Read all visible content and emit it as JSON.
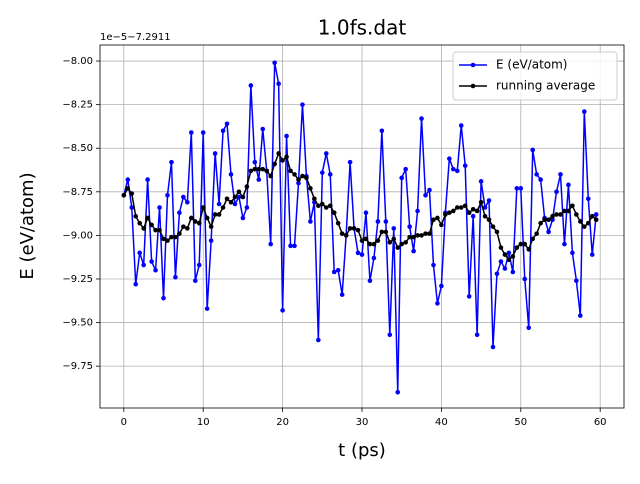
{
  "chart_data": {
    "type": "line",
    "title": "1.0fs.dat",
    "x_label": "t (ps)",
    "y_label": "E (eV/atom)",
    "y_offset_label": "1e−5−7.2911",
    "x": [
      0,
      0.5,
      1,
      1.5,
      2,
      2.5,
      3,
      3.5,
      4,
      4.5,
      5,
      5.5,
      6,
      6.5,
      7,
      7.5,
      8,
      8.5,
      9,
      9.5,
      10,
      10.5,
      11,
      11.5,
      12,
      12.5,
      13,
      13.5,
      14,
      14.5,
      15,
      15.5,
      16,
      16.5,
      17,
      17.5,
      18,
      18.5,
      19,
      19.5,
      20,
      20.5,
      21,
      21.5,
      22,
      22.5,
      23,
      23.5,
      24,
      24.5,
      25,
      25.5,
      26,
      26.5,
      27,
      27.5,
      28,
      28.5,
      29,
      29.5,
      30,
      30.5,
      31,
      31.5,
      32,
      32.5,
      33,
      33.5,
      34,
      34.5,
      35,
      35.5,
      36,
      36.5,
      37,
      37.5,
      38,
      38.5,
      39,
      39.5,
      40,
      40.5,
      41,
      41.5,
      42,
      42.5,
      43,
      43.5,
      44,
      44.5,
      45,
      45.5,
      46,
      46.5,
      47,
      47.5,
      48,
      48.5,
      49,
      49.5,
      50,
      50.5,
      51,
      51.5,
      52,
      52.5,
      53,
      53.5,
      54,
      54.5,
      55,
      55.5,
      56,
      56.5,
      57,
      57.5,
      58,
      58.5,
      59,
      59.5
    ],
    "series": [
      {
        "name": "E (eV/atom)",
        "color": "#0000ff",
        "values": [
          -8.77,
          -8.68,
          -8.84,
          -9.28,
          -9.1,
          -9.17,
          -8.68,
          -9.15,
          -9.2,
          -8.84,
          -9.36,
          -8.77,
          -8.58,
          -9.24,
          -8.87,
          -8.78,
          -8.81,
          -8.41,
          -9.26,
          -9.17,
          -8.41,
          -9.42,
          -9.03,
          -8.53,
          -8.82,
          -8.4,
          -8.36,
          -8.65,
          -8.82,
          -8.78,
          -8.9,
          -8.84,
          -8.14,
          -8.58,
          -8.68,
          -8.39,
          -8.63,
          -9.05,
          -8.01,
          -8.13,
          -9.43,
          -8.43,
          -9.06,
          -9.06,
          -8.7,
          -8.25,
          -8.66,
          -8.92,
          -8.81,
          -9.6,
          -8.64,
          -8.53,
          -8.65,
          -9.21,
          -9.2,
          -9.34,
          -9.0,
          -8.58,
          -8.96,
          -9.1,
          -9.11,
          -8.87,
          -9.26,
          -9.13,
          -8.92,
          -8.4,
          -8.92,
          -9.57,
          -8.96,
          -9.9,
          -8.67,
          -8.62,
          -8.95,
          -9.09,
          -8.86,
          -8.33,
          -8.77,
          -8.74,
          -9.17,
          -9.39,
          -9.29,
          -8.87,
          -8.56,
          -8.62,
          -8.63,
          -8.37,
          -8.6,
          -9.35,
          -8.89,
          -9.57,
          -8.69,
          -8.84,
          -8.8,
          -9.64,
          -9.22,
          -9.15,
          -9.19,
          -9.1,
          -9.21,
          -8.73,
          -8.73,
          -9.25,
          -9.53,
          -8.51,
          -8.65,
          -8.68,
          -8.9,
          -8.98,
          -8.91,
          -8.75,
          -8.65,
          -9.05,
          -8.71,
          -9.1,
          -9.26,
          -9.46,
          -8.29,
          -8.79,
          -9.11,
          -8.88
        ]
      },
      {
        "name": "running average",
        "color": "#000000",
        "values": [
          -8.77,
          -8.73,
          -8.76,
          -8.89,
          -8.93,
          -8.96,
          -8.9,
          -8.94,
          -8.97,
          -8.97,
          -9.02,
          -9.03,
          -9.01,
          -9.01,
          -8.99,
          -8.95,
          -8.96,
          -8.9,
          -8.92,
          -8.93,
          -8.84,
          -8.9,
          -8.95,
          -8.88,
          -8.88,
          -8.84,
          -8.79,
          -8.81,
          -8.78,
          -8.75,
          -8.78,
          -8.72,
          -8.63,
          -8.62,
          -8.62,
          -8.62,
          -8.63,
          -8.66,
          -8.59,
          -8.53,
          -8.57,
          -8.55,
          -8.63,
          -8.65,
          -8.68,
          -8.66,
          -8.67,
          -8.73,
          -8.79,
          -8.83,
          -8.82,
          -8.84,
          -8.83,
          -8.87,
          -8.93,
          -8.99,
          -9.0,
          -8.96,
          -8.96,
          -8.97,
          -9.03,
          -9.02,
          -9.05,
          -9.05,
          -9.03,
          -8.98,
          -8.98,
          -9.04,
          -9.02,
          -9.07,
          -9.05,
          -9.04,
          -9.01,
          -9.01,
          -9.0,
          -9.0,
          -8.99,
          -8.99,
          -8.91,
          -8.9,
          -8.94,
          -8.88,
          -8.87,
          -8.86,
          -8.84,
          -8.84,
          -8.83,
          -8.87,
          -8.85,
          -8.86,
          -8.81,
          -8.89,
          -8.91,
          -8.95,
          -8.98,
          -9.07,
          -9.11,
          -9.14,
          -9.12,
          -9.07,
          -9.05,
          -9.05,
          -9.08,
          -9.02,
          -8.99,
          -8.93,
          -8.91,
          -8.91,
          -8.89,
          -8.88,
          -8.88,
          -8.86,
          -8.86,
          -8.83,
          -8.88,
          -8.92,
          -8.95,
          -8.93,
          -8.89,
          -8.91
        ]
      }
    ],
    "xlim": [
      -3,
      63
    ],
    "ylim": [
      -9.99,
      -7.908
    ],
    "xticks": [
      0,
      10,
      20,
      30,
      40,
      50,
      60
    ],
    "yticks": [
      {
        "value": -9.75,
        "label": "−9.75"
      },
      {
        "value": -9.5,
        "label": "−9.50"
      },
      {
        "value": -9.25,
        "label": "−9.25"
      },
      {
        "value": -9.0,
        "label": "−9.00"
      },
      {
        "value": -8.75,
        "label": "−8.75"
      },
      {
        "value": -8.5,
        "label": "−8.50"
      },
      {
        "value": -8.25,
        "label": "−8.25"
      },
      {
        "value": -8.0,
        "label": "−8.00"
      }
    ],
    "grid": true,
    "legend": "upper right"
  }
}
